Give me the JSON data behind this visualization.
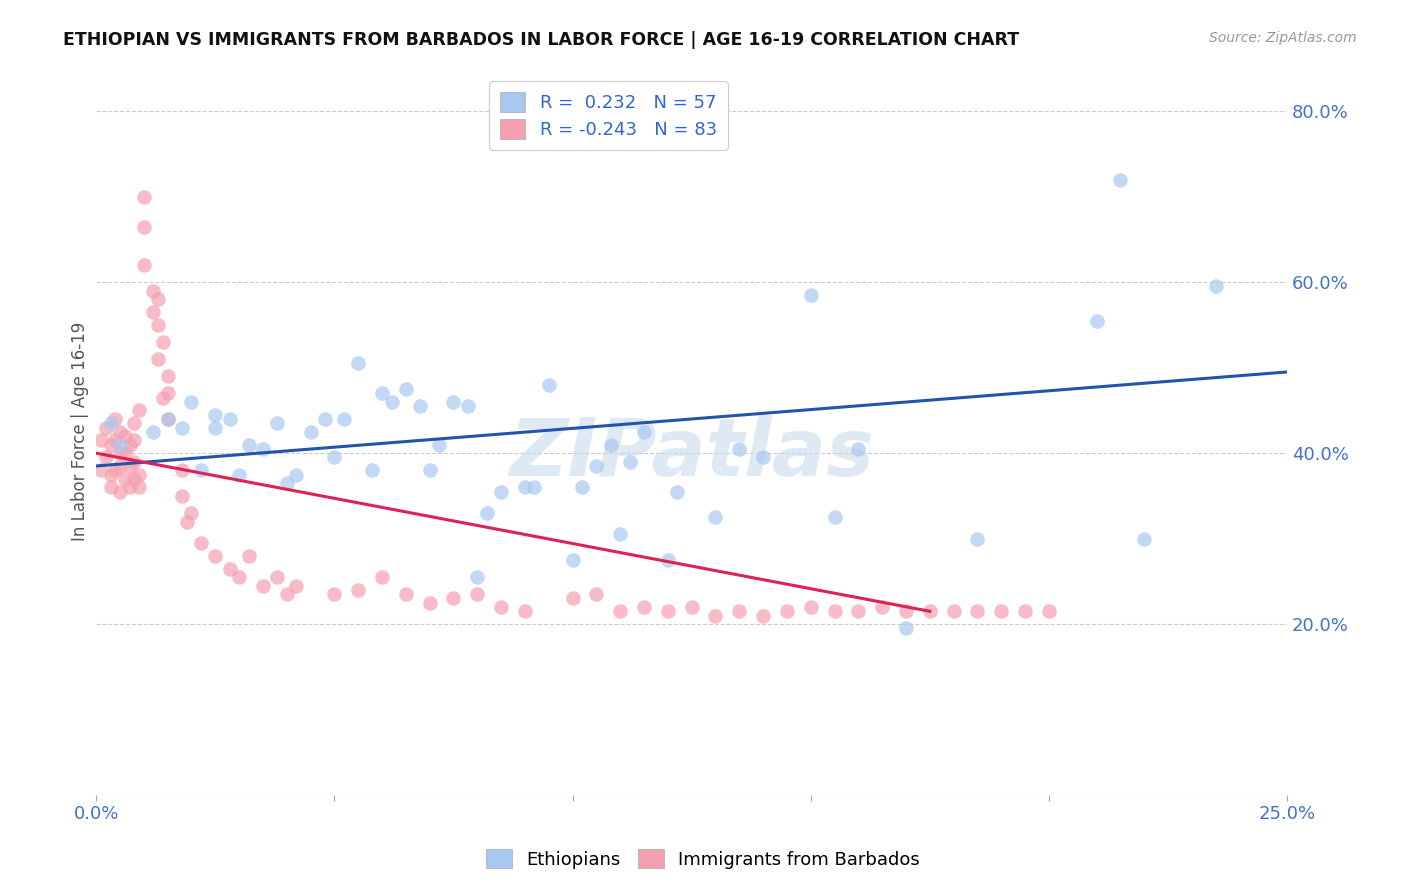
{
  "title": "ETHIOPIAN VS IMMIGRANTS FROM BARBADOS IN LABOR FORCE | AGE 16-19 CORRELATION CHART",
  "source_text": "Source: ZipAtlas.com",
  "ylabel": "In Labor Force | Age 16-19",
  "xlim": [
    0.0,
    0.25
  ],
  "ylim": [
    0.0,
    0.85
  ],
  "x_ticks": [
    0.0,
    0.05,
    0.1,
    0.15,
    0.2,
    0.25
  ],
  "x_tick_labels": [
    "0.0%",
    "",
    "",
    "",
    "",
    "25.0%"
  ],
  "y_ticks": [
    0.0,
    0.2,
    0.4,
    0.6,
    0.8
  ],
  "y_tick_labels_right": [
    "",
    "20.0%",
    "40.0%",
    "60.0%",
    "80.0%"
  ],
  "legend_label1": "R =  0.232   N = 57",
  "legend_label2": "R = -0.243   N = 83",
  "legend_color1": "#A8C8F0",
  "legend_color2": "#F4A0B0",
  "watermark": "ZIPatlas",
  "blue_line_x": [
    0.0,
    0.25
  ],
  "blue_line_y": [
    0.385,
    0.495
  ],
  "pink_line_x": [
    0.0,
    0.175
  ],
  "pink_line_y": [
    0.4,
    0.215
  ],
  "blue_scatter_x": [
    0.003,
    0.005,
    0.012,
    0.015,
    0.018,
    0.02,
    0.022,
    0.025,
    0.025,
    0.028,
    0.03,
    0.032,
    0.035,
    0.038,
    0.04,
    0.042,
    0.045,
    0.048,
    0.05,
    0.052,
    0.055,
    0.058,
    0.06,
    0.062,
    0.065,
    0.068,
    0.07,
    0.072,
    0.075,
    0.078,
    0.08,
    0.082,
    0.085,
    0.09,
    0.092,
    0.095,
    0.1,
    0.102,
    0.105,
    0.108,
    0.11,
    0.112,
    0.115,
    0.12,
    0.122,
    0.13,
    0.135,
    0.14,
    0.15,
    0.155,
    0.16,
    0.17,
    0.185,
    0.21,
    0.215,
    0.22,
    0.235
  ],
  "blue_scatter_y": [
    0.435,
    0.41,
    0.425,
    0.44,
    0.43,
    0.46,
    0.38,
    0.445,
    0.43,
    0.44,
    0.375,
    0.41,
    0.405,
    0.435,
    0.365,
    0.375,
    0.425,
    0.44,
    0.395,
    0.44,
    0.505,
    0.38,
    0.47,
    0.46,
    0.475,
    0.455,
    0.38,
    0.41,
    0.46,
    0.455,
    0.255,
    0.33,
    0.355,
    0.36,
    0.36,
    0.48,
    0.275,
    0.36,
    0.385,
    0.41,
    0.305,
    0.39,
    0.425,
    0.275,
    0.355,
    0.325,
    0.405,
    0.395,
    0.585,
    0.325,
    0.405,
    0.195,
    0.3,
    0.555,
    0.72,
    0.3,
    0.595
  ],
  "pink_scatter_x": [
    0.001,
    0.001,
    0.002,
    0.002,
    0.003,
    0.003,
    0.003,
    0.004,
    0.004,
    0.004,
    0.005,
    0.005,
    0.005,
    0.005,
    0.006,
    0.006,
    0.006,
    0.007,
    0.007,
    0.007,
    0.008,
    0.008,
    0.008,
    0.008,
    0.009,
    0.009,
    0.009,
    0.01,
    0.01,
    0.01,
    0.012,
    0.012,
    0.013,
    0.013,
    0.013,
    0.014,
    0.014,
    0.015,
    0.015,
    0.015,
    0.018,
    0.018,
    0.019,
    0.02,
    0.022,
    0.025,
    0.028,
    0.03,
    0.032,
    0.035,
    0.038,
    0.04,
    0.042,
    0.05,
    0.055,
    0.06,
    0.065,
    0.07,
    0.075,
    0.08,
    0.085,
    0.09,
    0.1,
    0.105,
    0.11,
    0.115,
    0.12,
    0.125,
    0.13,
    0.135,
    0.14,
    0.145,
    0.15,
    0.155,
    0.16,
    0.165,
    0.17,
    0.175,
    0.18,
    0.185,
    0.19,
    0.195,
    0.2
  ],
  "pink_scatter_y": [
    0.38,
    0.415,
    0.395,
    0.43,
    0.36,
    0.375,
    0.41,
    0.38,
    0.415,
    0.44,
    0.355,
    0.385,
    0.4,
    0.425,
    0.37,
    0.4,
    0.42,
    0.36,
    0.385,
    0.41,
    0.37,
    0.39,
    0.415,
    0.435,
    0.36,
    0.375,
    0.45,
    0.62,
    0.665,
    0.7,
    0.565,
    0.59,
    0.51,
    0.55,
    0.58,
    0.465,
    0.53,
    0.44,
    0.47,
    0.49,
    0.35,
    0.38,
    0.32,
    0.33,
    0.295,
    0.28,
    0.265,
    0.255,
    0.28,
    0.245,
    0.255,
    0.235,
    0.245,
    0.235,
    0.24,
    0.255,
    0.235,
    0.225,
    0.23,
    0.235,
    0.22,
    0.215,
    0.23,
    0.235,
    0.215,
    0.22,
    0.215,
    0.22,
    0.21,
    0.215,
    0.21,
    0.215,
    0.22,
    0.215,
    0.215,
    0.22,
    0.215,
    0.215,
    0.215,
    0.215,
    0.215,
    0.215,
    0.215
  ]
}
